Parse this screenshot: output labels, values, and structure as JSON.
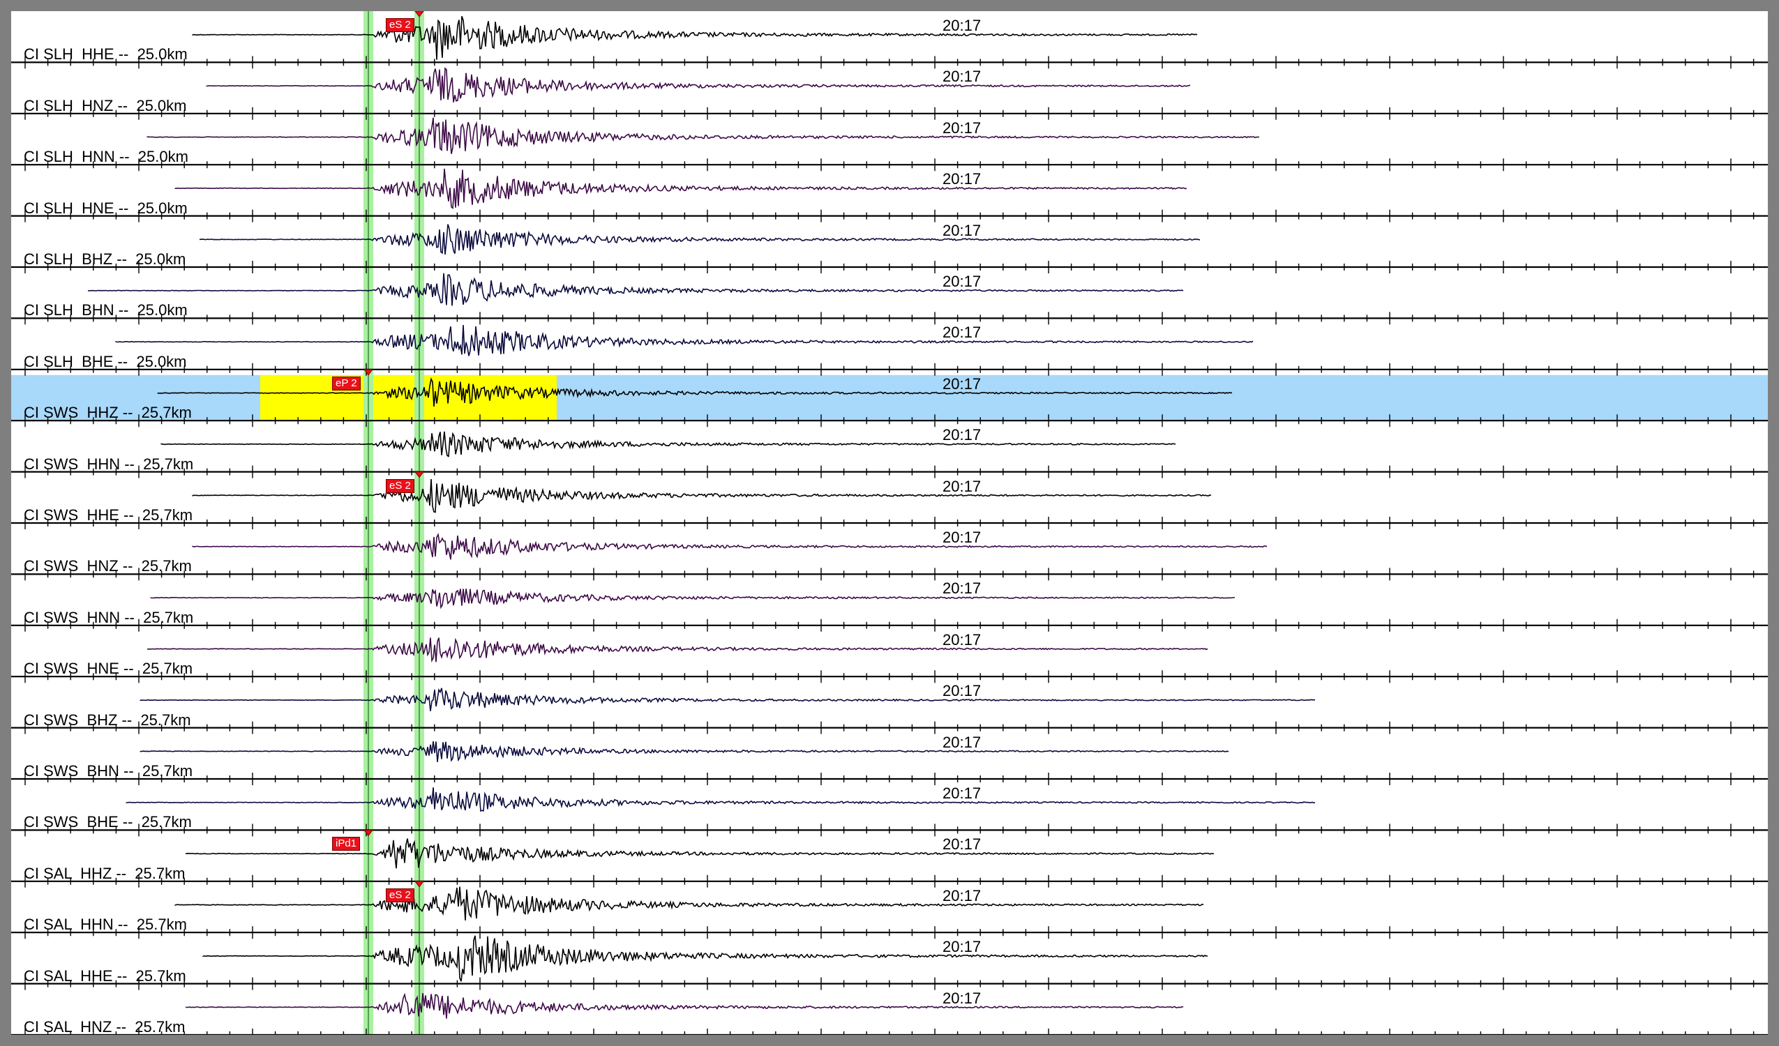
{
  "window": {
    "frame_color": "#7f7f7f",
    "background": "#ffffff"
  },
  "colors": {
    "selected_row": "#a8d8fa",
    "time_window": "#ffff00",
    "pick_band": "#a9f0a0",
    "pick_flag": "#e8101a",
    "trace_black": "#000000",
    "trace_purple": "#3c0a46",
    "trace_navy": "#0a0a3c"
  },
  "selected_channel": "CI SWS  HHZ --  25.7km",
  "channels": [
    {
      "label": "CI SLH  HHE --  25.0km",
      "time": "20:17",
      "trace": "black",
      "span": [
        260,
        1700
      ],
      "burst": 610,
      "amp": 34
    },
    {
      "label": "CI SLH  HNZ --  25.0km",
      "time": "20:17",
      "trace": "purple",
      "span": [
        280,
        1690
      ],
      "burst": 600,
      "amp": 28
    },
    {
      "label": "CI SLH  HNN --  25.0km",
      "time": "20:17",
      "trace": "purple",
      "span": [
        195,
        1790
      ],
      "burst": 600,
      "amp": 30
    },
    {
      "label": "CI SLH  HNE --  25.0km",
      "time": "20:17",
      "trace": "purple",
      "span": [
        235,
        1685
      ],
      "burst": 620,
      "amp": 30
    },
    {
      "label": "CI SLH  BHZ --  25.0km",
      "time": "20:17",
      "trace": "navy",
      "span": [
        270,
        1705
      ],
      "burst": 610,
      "amp": 24
    },
    {
      "label": "CI SLH  BHN --  25.0km",
      "time": "20:17",
      "trace": "navy",
      "span": [
        110,
        1680
      ],
      "burst": 615,
      "amp": 24
    },
    {
      "label": "CI SLH  BHE --  25.0km",
      "time": "20:17",
      "trace": "navy",
      "span": [
        150,
        1780
      ],
      "burst": 630,
      "amp": 28
    },
    {
      "label": "CI SWS  HHZ --  25.7km",
      "time": "20:17",
      "trace": "black",
      "span": [
        210,
        1750
      ],
      "burst": 590,
      "amp": 22
    },
    {
      "label": "CI SWS  HHN --  25.7km",
      "time": "20:17",
      "trace": "black",
      "span": [
        215,
        1670
      ],
      "burst": 600,
      "amp": 20
    },
    {
      "label": "CI SWS  HHE --  25.7km",
      "time": "20:17",
      "trace": "black",
      "span": [
        260,
        1720
      ],
      "burst": 600,
      "amp": 24
    },
    {
      "label": "CI SWS  HNZ --  25.7km",
      "time": "20:17",
      "trace": "purple",
      "span": [
        260,
        1800
      ],
      "burst": 600,
      "amp": 22
    },
    {
      "label": "CI SWS  HNN --  25.7km",
      "time": "20:17",
      "trace": "purple",
      "span": [
        200,
        1755
      ],
      "burst": 600,
      "amp": 18
    },
    {
      "label": "CI SWS  HNE --  25.7km",
      "time": "20:17",
      "trace": "purple",
      "span": [
        195,
        1715
      ],
      "burst": 600,
      "amp": 22
    },
    {
      "label": "CI SWS  BHZ --  25.7km",
      "time": "20:17",
      "trace": "navy",
      "span": [
        185,
        1870
      ],
      "burst": 600,
      "amp": 18
    },
    {
      "label": "CI SWS  BHN --  25.7km",
      "time": "20:17",
      "trace": "navy",
      "span": [
        185,
        1745
      ],
      "burst": 600,
      "amp": 16
    },
    {
      "label": "CI SWS  BHE --  25.7km",
      "time": "20:17",
      "trace": "navy",
      "span": [
        165,
        1870
      ],
      "burst": 600,
      "amp": 22
    },
    {
      "label": "CI SAL  HHZ --  25.7km",
      "time": "20:17",
      "trace": "black",
      "span": [
        250,
        1725
      ],
      "burst": 540,
      "amp": 26
    },
    {
      "label": "CI SAL  HHN --  25.7km",
      "time": "20:17",
      "trace": "black",
      "span": [
        235,
        1710
      ],
      "burst": 620,
      "amp": 30
    },
    {
      "label": "CI SAL  HHE --  25.7km",
      "time": "20:17",
      "trace": "black",
      "span": [
        275,
        1715
      ],
      "burst": 640,
      "amp": 36
    },
    {
      "label": "CI SAL  HNZ --  25.7km",
      "time": "20:17",
      "trace": "purple",
      "span": [
        250,
        1680
      ],
      "burst": 560,
      "amp": 26
    }
  ],
  "picks": [
    {
      "label": "eS 2",
      "row": 0
    },
    {
      "label": "eP 2",
      "row": 7
    },
    {
      "label": "eS 2",
      "row": 9
    },
    {
      "label": "iPd1",
      "row": 16
    },
    {
      "label": "eS 2",
      "row": 17
    }
  ]
}
